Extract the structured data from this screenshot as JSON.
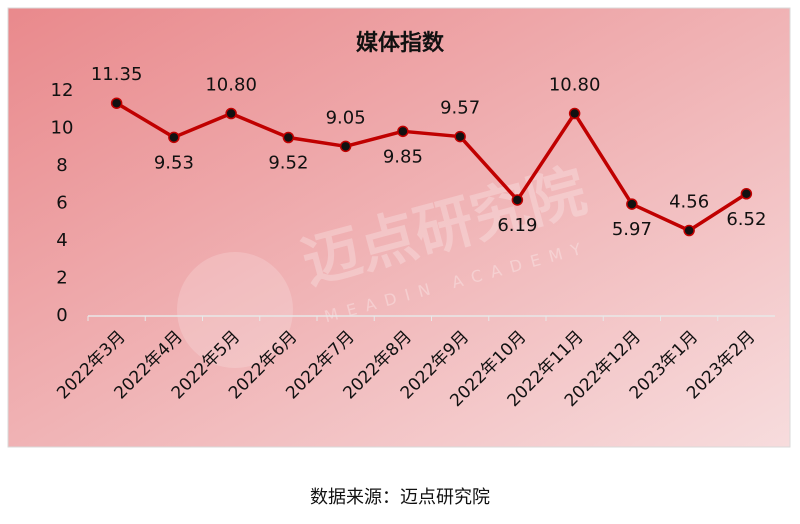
{
  "chart_data": {
    "type": "line",
    "title": "媒体指数",
    "categories": [
      "2022年3月",
      "2022年4月",
      "2022年5月",
      "2022年6月",
      "2022年7月",
      "2022年8月",
      "2022年9月",
      "2022年10月",
      "2022年11月",
      "2022年12月",
      "2023年1月",
      "2023年2月"
    ],
    "series": [
      {
        "name": "媒体指数",
        "color": "#c00000",
        "values": [
          11.35,
          9.53,
          10.8,
          9.52,
          9.05,
          9.85,
          9.57,
          6.19,
          10.8,
          5.97,
          4.56,
          6.52
        ],
        "value_labels": [
          "11.35",
          "9.53",
          "10.80",
          "9.52",
          "9.05",
          "9.85",
          "9.57",
          "6.19",
          "10.80",
          "5.97",
          "4.56",
          "6.52"
        ]
      }
    ],
    "ylim": [
      0,
      12
    ],
    "yticks": [
      0,
      2,
      4,
      6,
      8,
      10,
      12
    ],
    "grid": false
  },
  "watermark": {
    "name": "迈点研究院",
    "subname": "MEADIN ACADEMY"
  },
  "source": "数据来源：迈点研究院"
}
